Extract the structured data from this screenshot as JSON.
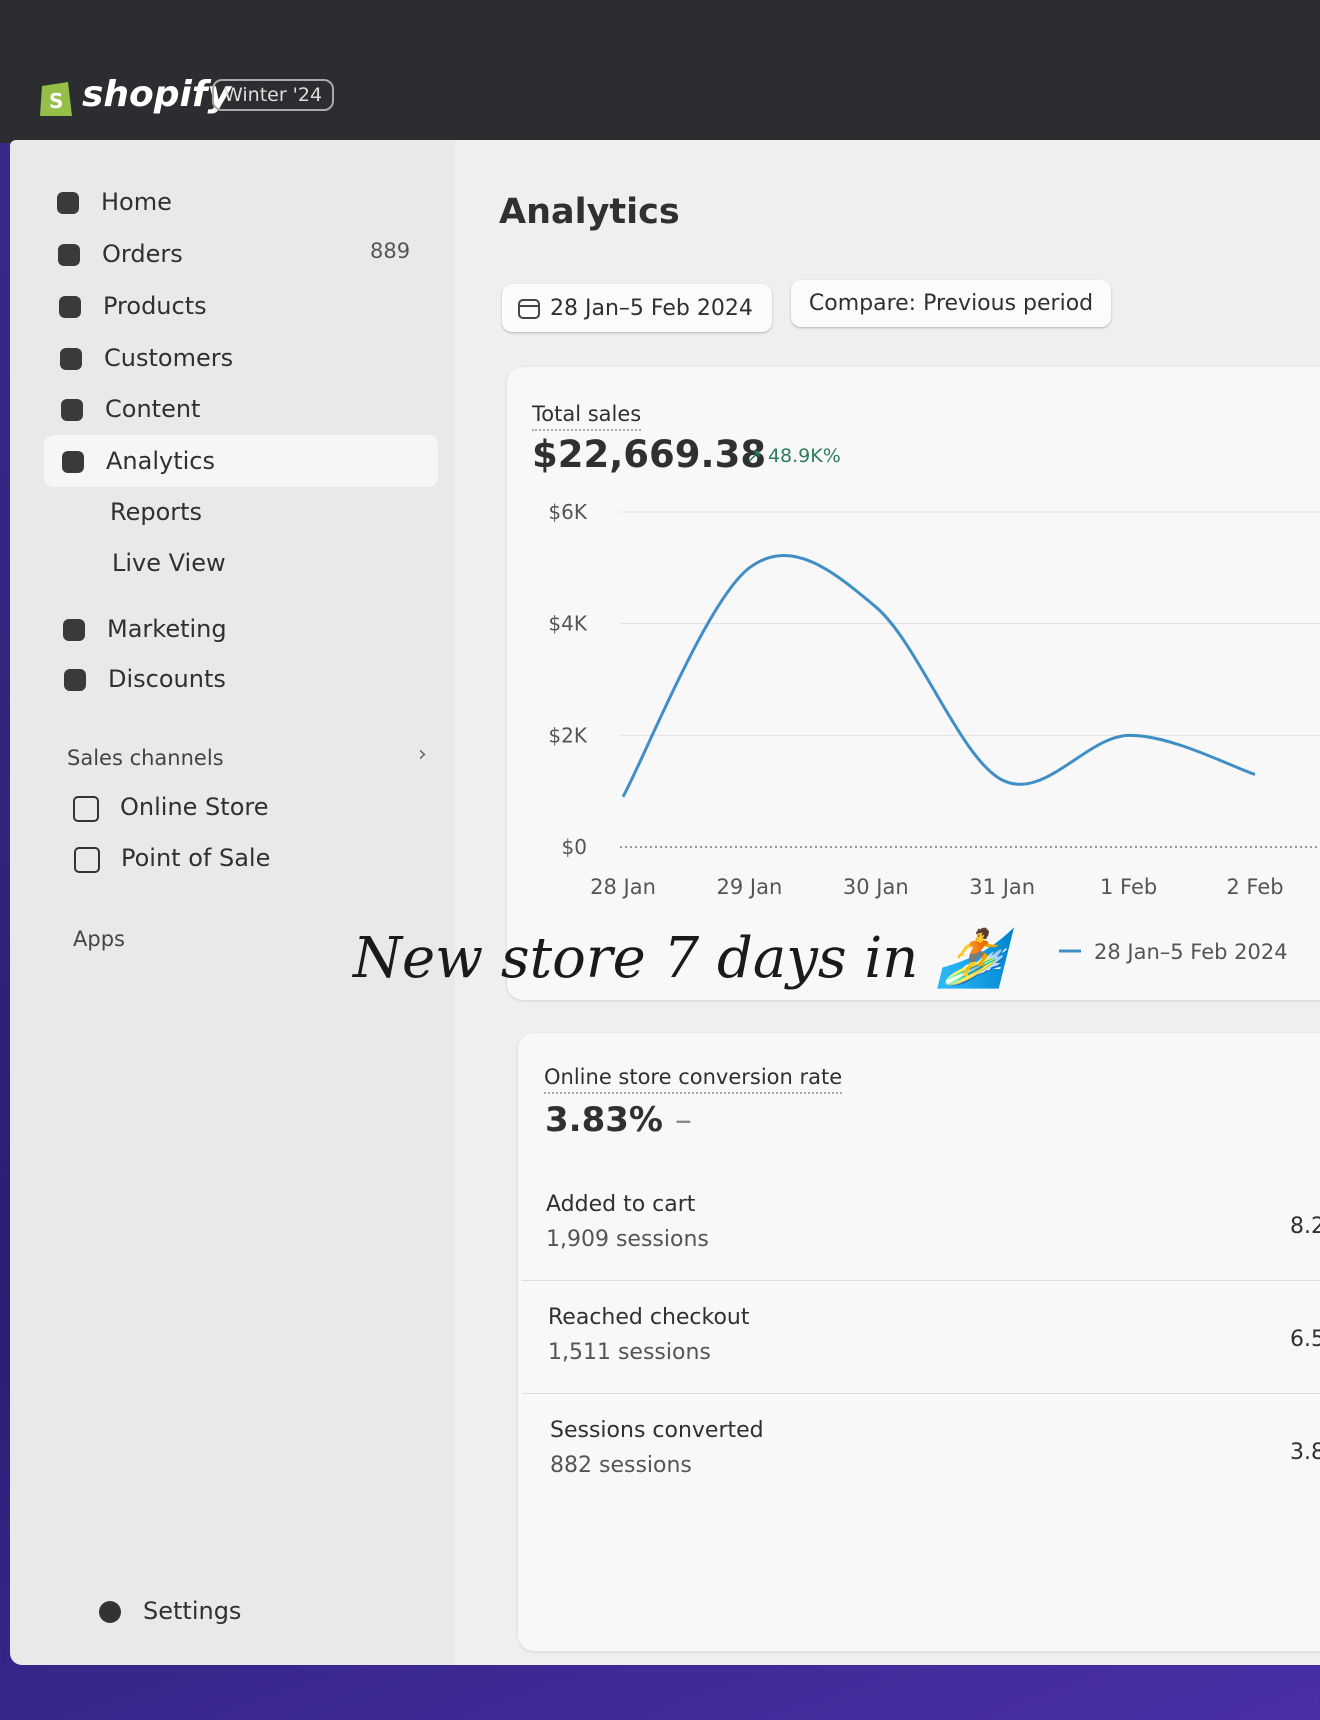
{
  "header": {
    "logo": "shopify",
    "badge": "Winter '24"
  },
  "nav": [
    {
      "label": "Home"
    },
    {
      "label": "Orders",
      "count": 889
    },
    {
      "label": "Products"
    },
    {
      "label": "Customers"
    },
    {
      "label": "Content"
    },
    {
      "label": "Analytics",
      "children": [
        "Reports",
        "Live View"
      ]
    },
    {
      "label": "Marketing"
    },
    {
      "label": "Discounts"
    }
  ],
  "sales_channels": {
    "title": "Sales channels",
    "items": [
      "Online Store",
      "Point of Sale"
    ]
  },
  "apps": "Apps",
  "settings": "Settings",
  "page_title": "Analytics",
  "date_range": "28 Jan–5 Feb 2024",
  "compare": "Compare: Previous period",
  "total_sales": {
    "label": "Total sales",
    "value": "$22,669.38",
    "change": "48.9K%",
    "chart_data": {
      "type": "line",
      "categories": [
        "28 Jan",
        "29 Jan",
        "30 Jan",
        "31 Jan",
        "1 Feb",
        "2 Feb"
      ],
      "series": [
        {
          "name": "28 Jan–5 Feb 2024",
          "color": "#3f8fc6",
          "values": [
            900,
            5000,
            4300,
            1200,
            2000,
            1300
          ]
        }
      ],
      "ylim": [
        0,
        6000
      ],
      "yticks": [
        {
          "value": 0,
          "label": "$0"
        },
        {
          "value": 2000,
          "label": "$2K"
        },
        {
          "value": 4000,
          "label": "$4K"
        },
        {
          "value": 6000,
          "label": "$6K"
        }
      ],
      "grid": true
    }
  },
  "conversion": {
    "label": "Online store conversion rate",
    "value": "3.83%",
    "change": "–",
    "rows": [
      {
        "label": "Added to cart",
        "sessions": "1,909 sessions",
        "rate": "8.2"
      },
      {
        "label": "Reached checkout",
        "sessions": "1,511 sessions",
        "rate": "6.5"
      },
      {
        "label": "Sessions converted",
        "sessions": "882 sessions",
        "rate": "3.8"
      }
    ]
  },
  "caption": "New store 7 days in 🏄"
}
